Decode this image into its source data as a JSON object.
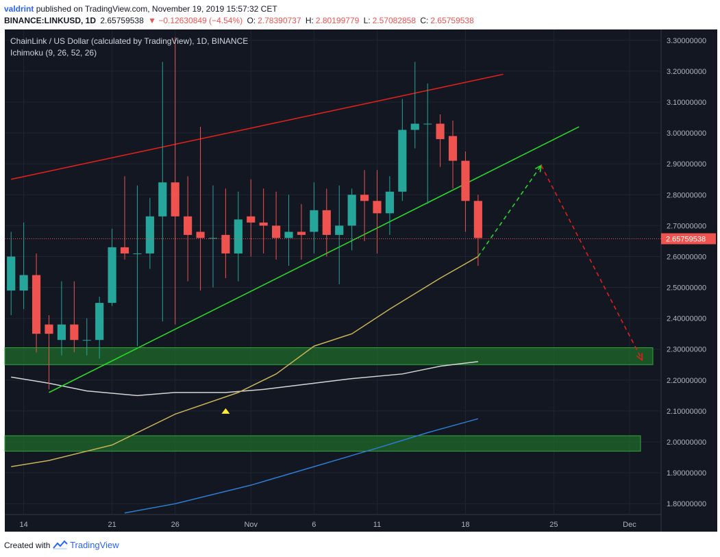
{
  "header": {
    "author": "valdrint",
    "published_text": "published on TradingView.com, November 19, 2019 15:57:32 CET",
    "symbol_line": "BINANCE:LINKUSD, 1D",
    "price": "2.65759538",
    "change": "▼ −0.12630849 (−4.54%)",
    "ohlc": [
      {
        "label": "O:",
        "value": "2.78390737"
      },
      {
        "label": "H:",
        "value": "2.80199779"
      },
      {
        "label": "L:",
        "value": "2.57082858"
      },
      {
        "label": "C:",
        "value": "2.65759538"
      }
    ]
  },
  "legend": {
    "title": "ChainLink / US Dollar (calculated by TradingView), 1D, BINANCE",
    "indicator": "Ichimoku (9, 26, 52, 26)"
  },
  "footer": {
    "created_with": "Created with",
    "brand": "TradingView"
  },
  "colors": {
    "background": "#131722",
    "up": "#26a69a",
    "down": "#ef5350",
    "resistance": "#e0201b",
    "support": "#2bd72b",
    "ma_yellow": "#c9b458",
    "ma_white": "#d6d6d6",
    "ma_blue": "#2e7dd2",
    "zone": "#1f6b2a"
  },
  "chart_data": {
    "type": "candlestick",
    "ylim": [
      1.765,
      3.335
    ],
    "y_ticks": [
      "3.30000000",
      "3.20000000",
      "3.10000000",
      "3.00000000",
      "2.90000000",
      "2.80000000",
      "2.70000000",
      "2.60000000",
      "2.50000000",
      "2.40000000",
      "2.30000000",
      "2.20000000",
      "2.10000000",
      "2.00000000",
      "1.90000000",
      "1.80000000"
    ],
    "x_ticks": [
      {
        "label": "14",
        "date": "2019-10-14"
      },
      {
        "label": "21",
        "date": "2019-10-21"
      },
      {
        "label": "26",
        "date": "2019-10-26"
      },
      {
        "label": "Nov",
        "date": "2019-11-01"
      },
      {
        "label": "6",
        "date": "2019-11-06"
      },
      {
        "label": "11",
        "date": "2019-11-11"
      },
      {
        "label": "18",
        "date": "2019-11-18"
      },
      {
        "label": "25",
        "date": "2019-11-25"
      },
      {
        "label": "Dec",
        "date": "2019-12-01"
      }
    ],
    "xlim": [
      "2019-10-13",
      "2019-12-03"
    ],
    "last_price_label": "2.65759538",
    "last_price": 2.65759538,
    "candles": [
      {
        "date": "2019-10-13",
        "o": 2.49,
        "h": 2.68,
        "l": 2.41,
        "c": 2.6
      },
      {
        "date": "2019-10-14",
        "o": 2.49,
        "h": 2.71,
        "l": 2.43,
        "c": 2.54
      },
      {
        "date": "2019-10-15",
        "o": 2.54,
        "h": 2.61,
        "l": 2.29,
        "c": 2.35
      },
      {
        "date": "2019-10-16",
        "o": 2.38,
        "h": 2.41,
        "l": 2.17,
        "c": 2.35
      },
      {
        "date": "2019-10-17",
        "o": 2.33,
        "h": 2.52,
        "l": 2.28,
        "c": 2.38
      },
      {
        "date": "2019-10-18",
        "o": 2.38,
        "h": 2.52,
        "l": 2.29,
        "c": 2.33
      },
      {
        "date": "2019-10-19",
        "o": 2.33,
        "h": 2.4,
        "l": 2.28,
        "c": 2.33
      },
      {
        "date": "2019-10-20",
        "o": 2.33,
        "h": 2.47,
        "l": 2.27,
        "c": 2.45
      },
      {
        "date": "2019-10-21",
        "o": 2.45,
        "h": 2.69,
        "l": 2.44,
        "c": 2.63
      },
      {
        "date": "2019-10-22",
        "o": 2.63,
        "h": 2.86,
        "l": 2.59,
        "c": 2.61
      },
      {
        "date": "2019-10-23",
        "o": 2.61,
        "h": 2.83,
        "l": 2.31,
        "c": 2.61
      },
      {
        "date": "2019-10-24",
        "o": 2.61,
        "h": 2.79,
        "l": 2.56,
        "c": 2.73
      },
      {
        "date": "2019-10-25",
        "o": 2.73,
        "h": 3.23,
        "l": 2.39,
        "c": 2.84
      },
      {
        "date": "2019-10-26",
        "o": 2.84,
        "h": 3.31,
        "l": 2.38,
        "c": 2.73
      },
      {
        "date": "2019-10-27",
        "o": 2.73,
        "h": 2.86,
        "l": 2.52,
        "c": 2.67
      },
      {
        "date": "2019-10-28",
        "o": 2.68,
        "h": 3.02,
        "l": 2.49,
        "c": 2.66
      },
      {
        "date": "2019-10-29",
        "o": 2.66,
        "h": 2.83,
        "l": 2.5,
        "c": 2.66
      },
      {
        "date": "2019-10-30",
        "o": 2.67,
        "h": 2.82,
        "l": 2.53,
        "c": 2.61
      },
      {
        "date": "2019-10-31",
        "o": 2.61,
        "h": 2.81,
        "l": 2.52,
        "c": 2.72
      },
      {
        "date": "2019-11-01",
        "o": 2.73,
        "h": 2.85,
        "l": 2.6,
        "c": 2.71
      },
      {
        "date": "2019-11-02",
        "o": 2.71,
        "h": 2.82,
        "l": 2.61,
        "c": 2.7
      },
      {
        "date": "2019-11-03",
        "o": 2.7,
        "h": 2.81,
        "l": 2.59,
        "c": 2.66
      },
      {
        "date": "2019-11-04",
        "o": 2.66,
        "h": 2.8,
        "l": 2.57,
        "c": 2.68
      },
      {
        "date": "2019-11-05",
        "o": 2.68,
        "h": 2.77,
        "l": 2.59,
        "c": 2.67
      },
      {
        "date": "2019-11-06",
        "o": 2.68,
        "h": 2.84,
        "l": 2.61,
        "c": 2.75
      },
      {
        "date": "2019-11-07",
        "o": 2.75,
        "h": 2.82,
        "l": 2.6,
        "c": 2.67
      },
      {
        "date": "2019-11-08",
        "o": 2.67,
        "h": 2.83,
        "l": 2.51,
        "c": 2.7
      },
      {
        "date": "2019-11-09",
        "o": 2.7,
        "h": 2.82,
        "l": 2.62,
        "c": 2.8
      },
      {
        "date": "2019-11-10",
        "o": 2.8,
        "h": 2.88,
        "l": 2.65,
        "c": 2.78
      },
      {
        "date": "2019-11-11",
        "o": 2.78,
        "h": 2.88,
        "l": 2.61,
        "c": 2.74
      },
      {
        "date": "2019-11-12",
        "o": 2.74,
        "h": 2.86,
        "l": 2.67,
        "c": 2.81
      },
      {
        "date": "2019-11-13",
        "o": 2.81,
        "h": 3.11,
        "l": 2.78,
        "c": 3.01
      },
      {
        "date": "2019-11-14",
        "o": 3.01,
        "h": 3.23,
        "l": 2.95,
        "c": 3.03
      },
      {
        "date": "2019-11-15",
        "o": 3.03,
        "h": 3.16,
        "l": 2.77,
        "c": 3.03
      },
      {
        "date": "2019-11-16",
        "o": 3.03,
        "h": 3.06,
        "l": 2.89,
        "c": 2.98
      },
      {
        "date": "2019-11-17",
        "o": 2.99,
        "h": 3.04,
        "l": 2.82,
        "c": 2.91
      },
      {
        "date": "2019-11-18",
        "o": 2.91,
        "h": 2.94,
        "l": 2.68,
        "c": 2.78
      },
      {
        "date": "2019-11-19",
        "o": 2.78,
        "h": 2.8,
        "l": 2.57,
        "c": 2.66
      }
    ],
    "ma_yellow": [
      [
        "2019-10-13",
        1.92
      ],
      [
        "2019-10-16",
        1.94
      ],
      [
        "2019-10-21",
        1.99
      ],
      [
        "2019-10-26",
        2.09
      ],
      [
        "2019-10-31",
        2.16
      ],
      [
        "2019-11-03",
        2.22
      ],
      [
        "2019-11-06",
        2.31
      ],
      [
        "2019-11-09",
        2.35
      ],
      [
        "2019-11-12",
        2.43
      ],
      [
        "2019-11-16",
        2.53
      ],
      [
        "2019-11-19",
        2.6
      ]
    ],
    "ma_white": [
      [
        "2019-10-13",
        2.21
      ],
      [
        "2019-10-16",
        2.19
      ],
      [
        "2019-10-19",
        2.165
      ],
      [
        "2019-10-23",
        2.15
      ],
      [
        "2019-10-26",
        2.16
      ],
      [
        "2019-10-30",
        2.16
      ],
      [
        "2019-11-02",
        2.17
      ],
      [
        "2019-11-06",
        2.19
      ],
      [
        "2019-11-09",
        2.205
      ],
      [
        "2019-11-13",
        2.22
      ],
      [
        "2019-11-16",
        2.245
      ],
      [
        "2019-11-19",
        2.26
      ]
    ],
    "ma_blue": [
      [
        "2019-10-22",
        1.77
      ],
      [
        "2019-10-26",
        1.8
      ],
      [
        "2019-11-01",
        1.86
      ],
      [
        "2019-11-06",
        1.92
      ],
      [
        "2019-11-11",
        1.98
      ],
      [
        "2019-11-15",
        2.03
      ],
      [
        "2019-11-19",
        2.075
      ]
    ],
    "resistance_line": [
      [
        "2019-10-13",
        2.85
      ],
      [
        "2019-11-21",
        3.19
      ]
    ],
    "support_line": [
      [
        "2019-10-16",
        2.16
      ],
      [
        "2019-11-27",
        3.02
      ]
    ],
    "zones": [
      [
        2.25,
        2.305
      ],
      [
        1.97,
        2.02
      ]
    ],
    "projection_up": [
      [
        "2019-11-19",
        2.6
      ],
      [
        "2019-11-24",
        2.895
      ]
    ],
    "projection_down": [
      [
        "2019-11-24",
        2.895
      ],
      [
        "2019-12-02",
        2.265
      ]
    ],
    "marker": [
      "2019-10-30",
      2.1
    ]
  }
}
